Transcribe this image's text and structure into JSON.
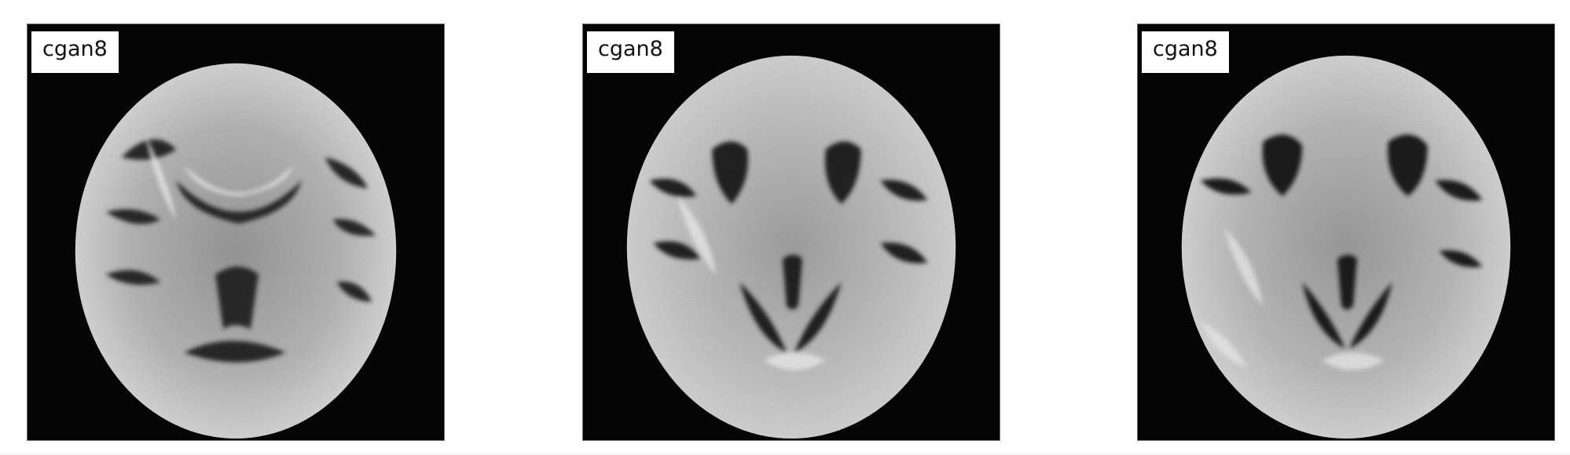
{
  "panels": [
    {
      "label": "cgan8",
      "variant": "a"
    },
    {
      "label": "cgan8",
      "variant": "b"
    },
    {
      "label": "cgan8",
      "variant": "c"
    }
  ],
  "colors": {
    "background": "#ffffff",
    "panel_background": "#050505",
    "label_background": "#ffffff",
    "label_text": "#111111"
  }
}
